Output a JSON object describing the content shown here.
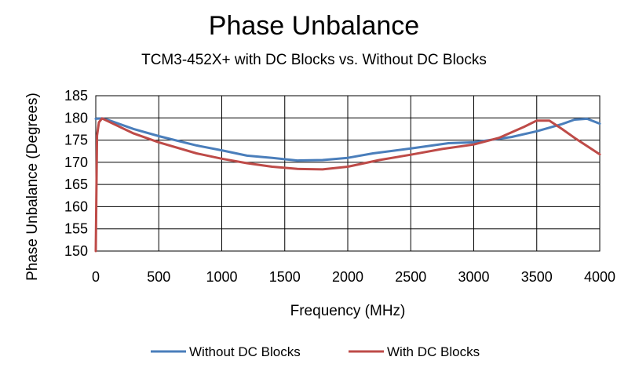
{
  "chart_data": {
    "type": "line",
    "title": "Phase Unbalance",
    "subtitle": "TCM3-452X+ with DC Blocks vs. Without DC Blocks",
    "xlabel": "Frequency (MHz)",
    "ylabel": "Phase Unbalance (Degrees)",
    "xlim": [
      0,
      4000
    ],
    "ylim": [
      150,
      185
    ],
    "xticks": [
      "0",
      "500",
      "1000",
      "1500",
      "2000",
      "2500",
      "3000",
      "3500",
      "4000"
    ],
    "yticks": [
      "150",
      "155",
      "160",
      "165",
      "170",
      "175",
      "180",
      "185"
    ],
    "grid": true,
    "legend_position": "bottom",
    "series": [
      {
        "name": "Without DC Blocks",
        "color": "#4a7ebb",
        "x": [
          0,
          50,
          100,
          300,
          500,
          800,
          1000,
          1200,
          1400,
          1600,
          1800,
          2000,
          2200,
          2500,
          2800,
          3000,
          3100,
          3300,
          3500,
          3700,
          3800,
          3900,
          4000
        ],
        "y": [
          179.8,
          179.9,
          179.5,
          177.5,
          175.9,
          173.8,
          172.7,
          171.5,
          171.0,
          170.4,
          170.5,
          171.0,
          172.0,
          173.1,
          174.3,
          174.5,
          174.9,
          175.7,
          177.0,
          178.6,
          179.6,
          179.8,
          178.7
        ]
      },
      {
        "name": "With DC Blocks",
        "color": "#be4b48",
        "x": [
          0,
          10,
          25,
          50,
          100,
          300,
          500,
          800,
          1000,
          1200,
          1400,
          1600,
          1800,
          2000,
          2250,
          2500,
          2750,
          3000,
          3200,
          3400,
          3500,
          3600,
          3700,
          3800,
          4000
        ],
        "y": [
          150.0,
          176.0,
          179.0,
          179.9,
          179.2,
          176.5,
          174.5,
          172.0,
          170.8,
          169.8,
          169.0,
          168.5,
          168.4,
          169.0,
          170.5,
          171.7,
          173.0,
          174.0,
          175.5,
          178.0,
          179.4,
          179.4,
          177.5,
          175.5,
          171.8
        ]
      }
    ]
  }
}
